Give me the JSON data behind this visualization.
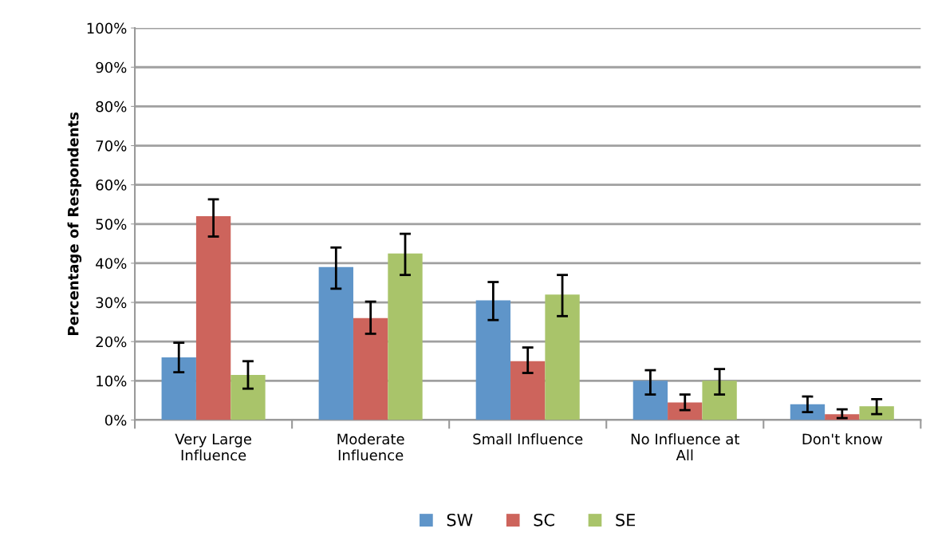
{
  "chart_data": {
    "type": "bar",
    "ylabel": "Percentage of Respondents",
    "categories": [
      "Very Large\nInfluence",
      "Moderate\nInfluence",
      "Small Influence",
      "No Influence at\nAll",
      "Don't know"
    ],
    "series": [
      {
        "name": "SW",
        "color": "#5f95c9",
        "values": [
          16,
          39,
          30.5,
          10,
          4
        ],
        "errors": [
          [
            12.2,
            19.7
          ],
          [
            33.5,
            44
          ],
          [
            25.5,
            35.2
          ],
          [
            6.5,
            12.7
          ],
          [
            2,
            6
          ]
        ]
      },
      {
        "name": "SC",
        "color": "#cd645c",
        "values": [
          52,
          26,
          15,
          4.5,
          1.5
        ],
        "errors": [
          [
            46.8,
            56.3
          ],
          [
            22,
            30.2
          ],
          [
            12,
            18.5
          ],
          [
            2.5,
            6.5
          ],
          [
            0.5,
            2.7
          ]
        ]
      },
      {
        "name": "SE",
        "color": "#a9c46a",
        "values": [
          11.5,
          42.5,
          32,
          10,
          3.5
        ],
        "errors": [
          [
            8,
            15
          ],
          [
            37,
            47.5
          ],
          [
            26.5,
            37
          ],
          [
            6.5,
            13
          ],
          [
            1.5,
            5.3
          ]
        ]
      }
    ],
    "ylim": [
      0,
      100
    ],
    "yticks": [
      {
        "value": 0,
        "label": "0%"
      },
      {
        "value": 10,
        "label": "10%"
      },
      {
        "value": 20,
        "label": "20%"
      },
      {
        "value": 30,
        "label": "30%"
      },
      {
        "value": 40,
        "label": "40%"
      },
      {
        "value": 50,
        "label": "50%"
      },
      {
        "value": 60,
        "label": "60%"
      },
      {
        "value": 70,
        "label": "70%"
      },
      {
        "value": 80,
        "label": "80%"
      },
      {
        "value": 90,
        "label": "90%"
      },
      {
        "value": 100,
        "label": "100%"
      }
    ],
    "grid": "y",
    "legend": "bottom"
  }
}
